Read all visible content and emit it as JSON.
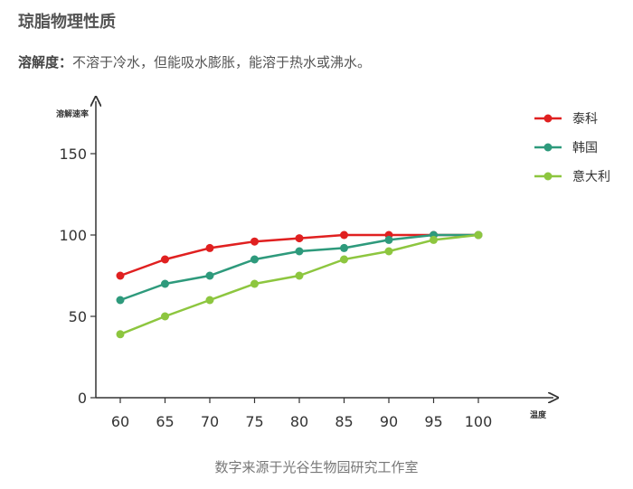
{
  "header": {
    "title": "琼脂物理性质",
    "description_label": "溶解度：",
    "description_text": "不溶于冷水，但能吸水膨胀，能溶于热水或沸水。"
  },
  "footer": {
    "source": "数字来源于光谷生物园研究工作室"
  },
  "chart_data": {
    "type": "line",
    "title": "",
    "xlabel": "温度",
    "ylabel": "溶解速率",
    "x": [
      60,
      65,
      70,
      75,
      80,
      85,
      90,
      95,
      100
    ],
    "xlim": [
      57,
      108
    ],
    "ylim": [
      0,
      170
    ],
    "yticks": [
      0,
      50,
      100,
      150
    ],
    "grid": false,
    "legend_position": "top-right",
    "series": [
      {
        "name": "泰科",
        "color": "#e02020",
        "values": [
          75,
          85,
          92,
          96,
          98,
          100,
          100,
          100,
          100
        ]
      },
      {
        "name": "韩国",
        "color": "#2e9a7c",
        "values": [
          60,
          70,
          75,
          85,
          90,
          92,
          97,
          100,
          100
        ]
      },
      {
        "name": "意大利",
        "color": "#8dc63f",
        "values": [
          39,
          50,
          60,
          70,
          75,
          85,
          90,
          97,
          100
        ]
      }
    ]
  }
}
